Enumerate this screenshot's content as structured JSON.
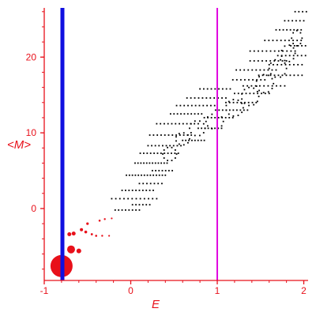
{
  "colors": {
    "axis": "#e8101a",
    "label": "#e8101a",
    "blue_line": "#1010e0",
    "magenta_line": "#e000e0",
    "points": "#000000",
    "red_points": "#e8101a"
  },
  "chart_data": {
    "type": "scatter",
    "title": "",
    "xlabel": "E",
    "ylabel": "<M>",
    "xlim": [
      -1.0,
      2.05
    ],
    "ylim": [
      -9.5,
      26.5
    ],
    "x_ticks": [
      "-1",
      "0",
      "1",
      "2"
    ],
    "y_ticks": [
      "0",
      "10",
      "20"
    ],
    "grid": false,
    "legend": "none",
    "vertical_lines": [
      {
        "x": -0.79,
        "color": "blue",
        "style": "thick"
      },
      {
        "x": 1.0,
        "color": "magenta",
        "style": "thin"
      }
    ],
    "red_points": [
      {
        "x": -0.8,
        "y": -7.6,
        "size": 14
      },
      {
        "x": -0.69,
        "y": -5.4,
        "size": 5
      },
      {
        "x": -0.6,
        "y": -5.6,
        "size": 3
      },
      {
        "x": -0.71,
        "y": -3.4,
        "size": 2.5
      },
      {
        "x": -0.66,
        "y": -3.3,
        "size": 2.5
      },
      {
        "x": -0.57,
        "y": -2.8,
        "size": 2
      },
      {
        "x": -0.52,
        "y": -3.1,
        "size": 1.8
      },
      {
        "x": -0.5,
        "y": -2.0,
        "size": 1.6
      },
      {
        "x": -0.45,
        "y": -3.4,
        "size": 1.4
      },
      {
        "x": -0.4,
        "y": -3.6,
        "size": 1.3
      },
      {
        "x": -0.36,
        "y": -1.6,
        "size": 1.3
      },
      {
        "x": -0.3,
        "y": -1.4,
        "size": 1.2
      },
      {
        "x": -0.33,
        "y": -3.6,
        "size": 1.2
      },
      {
        "x": -0.25,
        "y": -3.6,
        "size": 1.1
      },
      {
        "x": -0.22,
        "y": -1.3,
        "size": 1.1
      }
    ],
    "bands": [
      {
        "y": -0.2,
        "x_start": -0.18,
        "x_end": 0.1,
        "count": 8
      },
      {
        "y": 1.3,
        "x_start": -0.22,
        "x_end": 0.3,
        "count": 12
      },
      {
        "y": 2.4,
        "x_start": -0.1,
        "x_end": 0.26,
        "count": 10
      },
      {
        "y": 4.4,
        "x_start": -0.05,
        "x_end": 0.4,
        "count": 14
      },
      {
        "y": 6.0,
        "x_start": 0.05,
        "x_end": 0.42,
        "count": 12
      },
      {
        "y": 7.3,
        "x_start": 0.11,
        "x_end": 0.55,
        "count": 12
      },
      {
        "y": 8.3,
        "x_start": 0.2,
        "x_end": 0.58,
        "count": 10
      },
      {
        "y": 9.7,
        "x_start": 0.22,
        "x_end": 0.7,
        "count": 12
      },
      {
        "y": 11.2,
        "x_start": 0.3,
        "x_end": 0.78,
        "count": 12
      },
      {
        "y": 12.5,
        "x_start": 0.46,
        "x_end": 0.82,
        "count": 10
      },
      {
        "y": 13.6,
        "x_start": 0.53,
        "x_end": 0.97,
        "count": 11
      },
      {
        "y": 14.6,
        "x_start": 0.65,
        "x_end": 1.1,
        "count": 11
      },
      {
        "y": 15.8,
        "x_start": 0.8,
        "x_end": 1.15,
        "count": 9
      },
      {
        "y": 17.0,
        "x_start": 1.18,
        "x_end": 1.55,
        "count": 9
      },
      {
        "y": 18.3,
        "x_start": 1.22,
        "x_end": 1.68,
        "count": 11
      },
      {
        "y": 19.5,
        "x_start": 1.38,
        "x_end": 1.8,
        "count": 10
      },
      {
        "y": 20.8,
        "x_start": 1.38,
        "x_end": 1.9,
        "count": 12
      },
      {
        "y": 22.2,
        "x_start": 1.55,
        "x_end": 1.97,
        "count": 10
      },
      {
        "y": 23.6,
        "x_start": 1.68,
        "x_end": 1.97,
        "count": 8
      },
      {
        "y": 24.8,
        "x_start": 1.78,
        "x_end": 2.0,
        "count": 6
      },
      {
        "y": 26.0,
        "x_start": 1.9,
        "x_end": 2.03,
        "count": 4
      },
      {
        "y": 0.5,
        "x_start": 0.02,
        "x_end": 0.22,
        "count": 6
      },
      {
        "y": 3.3,
        "x_start": 0.1,
        "x_end": 0.36,
        "count": 7
      },
      {
        "y": 5.0,
        "x_start": 0.25,
        "x_end": 0.48,
        "count": 7
      },
      {
        "y": 9.0,
        "x_start": 0.6,
        "x_end": 0.85,
        "count": 8
      },
      {
        "y": 10.6,
        "x_start": 0.78,
        "x_end": 1.05,
        "count": 8
      },
      {
        "y": 12.0,
        "x_start": 0.85,
        "x_end": 1.18,
        "count": 9
      },
      {
        "y": 13.0,
        "x_start": 0.98,
        "x_end": 1.35,
        "count": 10
      },
      {
        "y": 14.0,
        "x_start": 1.1,
        "x_end": 1.45,
        "count": 9
      },
      {
        "y": 15.2,
        "x_start": 1.2,
        "x_end": 1.6,
        "count": 10
      },
      {
        "y": 16.2,
        "x_start": 1.3,
        "x_end": 1.78,
        "count": 11
      },
      {
        "y": 17.6,
        "x_start": 1.48,
        "x_end": 1.98,
        "count": 12
      },
      {
        "y": 19.0,
        "x_start": 1.6,
        "x_end": 1.98,
        "count": 9
      },
      {
        "y": 20.2,
        "x_start": 1.7,
        "x_end": 2.02,
        "count": 8
      },
      {
        "y": 21.5,
        "x_start": 1.85,
        "x_end": 2.02,
        "count": 5
      }
    ],
    "loops": [
      {
        "cx": 0.45,
        "cy": 7.2,
        "rx": 0.08,
        "ry": 0.9,
        "count": 10
      },
      {
        "cx": 0.6,
        "cy": 9.2,
        "rx": 0.08,
        "ry": 0.8,
        "count": 9
      },
      {
        "cx": 0.77,
        "cy": 10.6,
        "rx": 0.09,
        "ry": 1.0,
        "count": 10
      },
      {
        "cx": 0.97,
        "cy": 11.5,
        "rx": 0.1,
        "ry": 1.0,
        "count": 10
      },
      {
        "cx": 1.2,
        "cy": 13.3,
        "rx": 0.1,
        "ry": 1.1,
        "count": 11
      },
      {
        "cx": 1.38,
        "cy": 14.8,
        "rx": 0.1,
        "ry": 1.2,
        "count": 11
      },
      {
        "cx": 1.55,
        "cy": 16.5,
        "rx": 0.1,
        "ry": 1.2,
        "count": 11
      },
      {
        "cx": 1.7,
        "cy": 18.5,
        "rx": 0.1,
        "ry": 1.2,
        "count": 10
      },
      {
        "cx": 1.82,
        "cy": 20.5,
        "rx": 0.08,
        "ry": 1.1,
        "count": 9
      },
      {
        "cx": 1.92,
        "cy": 22.5,
        "rx": 0.06,
        "ry": 1.0,
        "count": 8
      }
    ]
  }
}
